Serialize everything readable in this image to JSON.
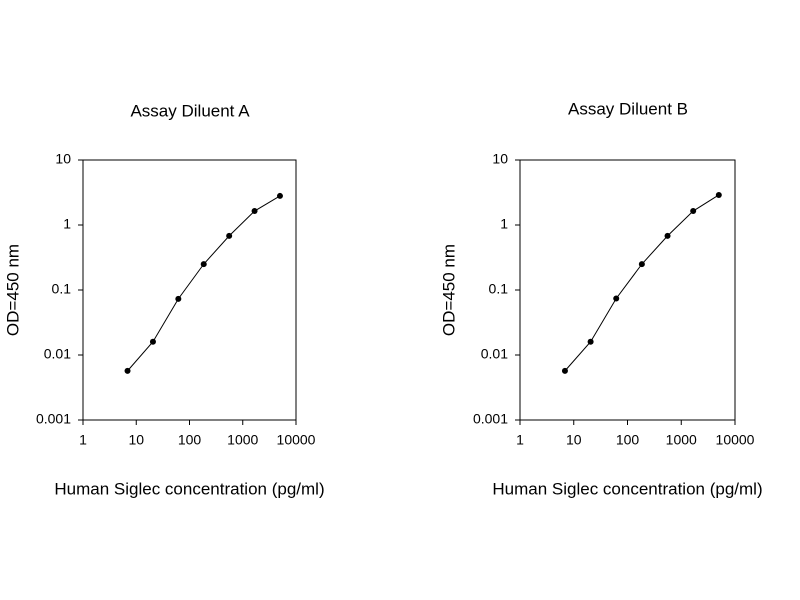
{
  "chart_data": [
    {
      "type": "line",
      "title": "Assay Diluent A",
      "xlabel": "Human Siglec concentration (pg/ml)",
      "ylabel": "OD=450 nm",
      "x": [
        6.86,
        20.6,
        61.7,
        185,
        556,
        1667,
        5000
      ],
      "series": [
        {
          "color": "#000000",
          "values": [
            0.0057,
            0.016,
            0.073,
            0.25,
            0.68,
            1.64,
            2.8
          ]
        }
      ],
      "xscale": "log",
      "yscale": "log",
      "xlim": [
        1,
        10000
      ],
      "xticks": [
        1,
        10,
        100,
        1000,
        10000
      ],
      "ylim": [
        0.001,
        10
      ],
      "yticks": [
        0.001,
        0.01,
        0.1,
        1,
        10
      ],
      "grid": false
    },
    {
      "type": "line",
      "title": "Assay Diluent B",
      "xlabel": "Human Siglec concentration (pg/ml)",
      "ylabel": "OD=450 nm",
      "x": [
        6.86,
        20.6,
        61.7,
        185,
        556,
        1667,
        5000
      ],
      "series": [
        {
          "color": "#000000",
          "values": [
            0.0057,
            0.016,
            0.074,
            0.25,
            0.68,
            1.64,
            2.9
          ]
        }
      ],
      "xscale": "log",
      "yscale": "log",
      "xlim": [
        1,
        10000
      ],
      "xticks": [
        1,
        10,
        100,
        1000,
        10000
      ],
      "ylim": [
        0.001,
        10
      ],
      "yticks": [
        0.001,
        0.01,
        0.1,
        1,
        10
      ],
      "grid": false
    }
  ]
}
